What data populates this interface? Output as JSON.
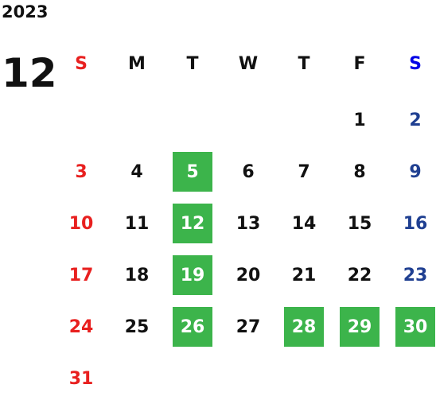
{
  "calendar": {
    "year": "2023",
    "month": "12",
    "weekdays": [
      "S",
      "M",
      "T",
      "W",
      "T",
      "F",
      "S"
    ],
    "header_colors": [
      "#e8201f",
      "#111111",
      "#111111",
      "#111111",
      "#111111",
      "#111111",
      "#0000e6"
    ],
    "day_colors": [
      "#e8201f",
      "#111111",
      "#111111",
      "#111111",
      "#111111",
      "#111111",
      "#1f3f91"
    ],
    "highlight_color": "#3cb44b",
    "weeks": [
      [
        null,
        null,
        null,
        null,
        null,
        {
          "day": 1
        },
        {
          "day": 2
        }
      ],
      [
        {
          "day": 3
        },
        {
          "day": 4
        },
        {
          "day": 5,
          "highlight": true
        },
        {
          "day": 6
        },
        {
          "day": 7
        },
        {
          "day": 8
        },
        {
          "day": 9
        }
      ],
      [
        {
          "day": 10
        },
        {
          "day": 11
        },
        {
          "day": 12,
          "highlight": true
        },
        {
          "day": 13
        },
        {
          "day": 14
        },
        {
          "day": 15
        },
        {
          "day": 16
        }
      ],
      [
        {
          "day": 17
        },
        {
          "day": 18
        },
        {
          "day": 19,
          "highlight": true
        },
        {
          "day": 20
        },
        {
          "day": 21
        },
        {
          "day": 22
        },
        {
          "day": 23
        }
      ],
      [
        {
          "day": 24
        },
        {
          "day": 25
        },
        {
          "day": 26,
          "highlight": true
        },
        {
          "day": 27
        },
        {
          "day": 28,
          "highlight": true
        },
        {
          "day": 29,
          "highlight": true
        },
        {
          "day": 30,
          "highlight": true
        }
      ],
      [
        {
          "day": 31
        },
        null,
        null,
        null,
        null,
        null,
        null
      ]
    ]
  }
}
